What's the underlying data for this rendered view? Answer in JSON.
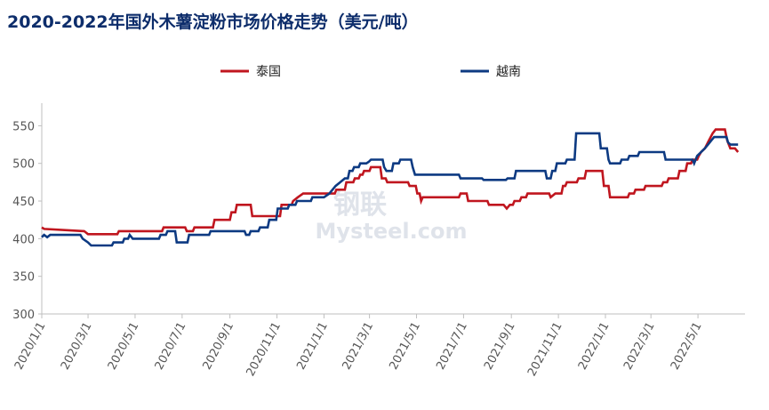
{
  "chart_data": {
    "type": "line",
    "title": "2020-2022年国外木薯淀粉市场价格走势（美元/吨）",
    "ylim": [
      300,
      580
    ],
    "yticks": [
      300,
      350,
      400,
      450,
      500,
      550
    ],
    "xlim": [
      "2020-01-01",
      "2022-07-01"
    ],
    "xticks": [
      "2020/1/1",
      "2020/3/1",
      "2020/5/1",
      "2020/7/1",
      "2020/9/1",
      "2020/11/1",
      "2021/1/1",
      "2021/3/1",
      "2021/5/1",
      "2021/7/1",
      "2021/9/1",
      "2021/11/1",
      "2022/1/1",
      "2022/3/1",
      "2022/5/1"
    ],
    "legend_position": "top",
    "grid": false,
    "watermark": [
      "钢联",
      "Mysteel.com"
    ],
    "series": [
      {
        "name": "泰国",
        "color": "#c0161f",
        "points": [
          [
            "2020-01-01",
            415
          ],
          [
            "2020-01-04",
            413
          ],
          [
            "2020-02-25",
            410
          ],
          [
            "2020-03-01",
            406
          ],
          [
            "2020-04-08",
            406
          ],
          [
            "2020-04-10",
            410
          ],
          [
            "2020-05-15",
            410
          ],
          [
            "2020-06-05",
            410
          ],
          [
            "2020-06-07",
            415
          ],
          [
            "2020-07-05",
            415
          ],
          [
            "2020-07-07",
            410
          ],
          [
            "2020-07-15",
            410
          ],
          [
            "2020-07-17",
            415
          ],
          [
            "2020-08-10",
            415
          ],
          [
            "2020-08-12",
            425
          ],
          [
            "2020-09-01",
            425
          ],
          [
            "2020-09-03",
            435
          ],
          [
            "2020-09-08",
            435
          ],
          [
            "2020-09-10",
            445
          ],
          [
            "2020-09-28",
            445
          ],
          [
            "2020-09-30",
            430
          ],
          [
            "2020-11-05",
            430
          ],
          [
            "2020-11-07",
            445
          ],
          [
            "2020-11-20",
            445
          ],
          [
            "2020-11-22",
            450
          ],
          [
            "2020-11-28",
            455
          ],
          [
            "2020-12-05",
            460
          ],
          [
            "2021-01-01",
            460
          ],
          [
            "2021-01-15",
            460
          ],
          [
            "2021-01-17",
            465
          ],
          [
            "2021-01-28",
            465
          ],
          [
            "2021-01-30",
            475
          ],
          [
            "2021-02-08",
            475
          ],
          [
            "2021-02-10",
            480
          ],
          [
            "2021-02-15",
            480
          ],
          [
            "2021-02-17",
            485
          ],
          [
            "2021-02-20",
            485
          ],
          [
            "2021-02-22",
            490
          ],
          [
            "2021-03-01",
            490
          ],
          [
            "2021-03-03",
            495
          ],
          [
            "2021-03-15",
            495
          ],
          [
            "2021-03-17",
            480
          ],
          [
            "2021-03-22",
            480
          ],
          [
            "2021-03-24",
            475
          ],
          [
            "2021-04-20",
            475
          ],
          [
            "2021-04-22",
            470
          ],
          [
            "2021-04-30",
            470
          ],
          [
            "2021-05-02",
            460
          ],
          [
            "2021-05-05",
            460
          ],
          [
            "2021-05-07",
            450
          ],
          [
            "2021-05-09",
            455
          ],
          [
            "2021-06-25",
            455
          ],
          [
            "2021-06-27",
            460
          ],
          [
            "2021-07-05",
            460
          ],
          [
            "2021-07-07",
            450
          ],
          [
            "2021-08-01",
            450
          ],
          [
            "2021-08-03",
            445
          ],
          [
            "2021-08-20",
            445
          ],
          [
            "2021-08-22",
            445
          ],
          [
            "2021-08-26",
            440
          ],
          [
            "2021-08-30",
            445
          ],
          [
            "2021-09-03",
            445
          ],
          [
            "2021-09-05",
            450
          ],
          [
            "2021-09-12",
            450
          ],
          [
            "2021-09-14",
            455
          ],
          [
            "2021-09-20",
            455
          ],
          [
            "2021-09-22",
            460
          ],
          [
            "2021-10-20",
            460
          ],
          [
            "2021-10-22",
            455
          ],
          [
            "2021-10-28",
            460
          ],
          [
            "2021-11-05",
            460
          ],
          [
            "2021-11-07",
            470
          ],
          [
            "2021-11-10",
            470
          ],
          [
            "2021-11-12",
            475
          ],
          [
            "2021-11-25",
            475
          ],
          [
            "2021-11-27",
            480
          ],
          [
            "2021-12-05",
            480
          ],
          [
            "2021-12-07",
            490
          ],
          [
            "2021-12-28",
            490
          ],
          [
            "2021-12-30",
            470
          ],
          [
            "2022-01-05",
            470
          ],
          [
            "2022-01-07",
            455
          ],
          [
            "2022-01-30",
            455
          ],
          [
            "2022-02-01",
            460
          ],
          [
            "2022-02-07",
            460
          ],
          [
            "2022-02-09",
            465
          ],
          [
            "2022-02-20",
            465
          ],
          [
            "2022-02-22",
            470
          ],
          [
            "2022-03-15",
            470
          ],
          [
            "2022-03-17",
            475
          ],
          [
            "2022-03-22",
            475
          ],
          [
            "2022-03-24",
            480
          ],
          [
            "2022-04-05",
            480
          ],
          [
            "2022-04-07",
            490
          ],
          [
            "2022-04-15",
            490
          ],
          [
            "2022-04-17",
            500
          ],
          [
            "2022-04-22",
            500
          ],
          [
            "2022-04-24",
            505
          ],
          [
            "2022-04-30",
            505
          ],
          [
            "2022-05-02",
            510
          ],
          [
            "2022-05-05",
            515
          ],
          [
            "2022-05-10",
            520
          ],
          [
            "2022-05-15",
            530
          ],
          [
            "2022-05-20",
            540
          ],
          [
            "2022-05-24",
            545
          ],
          [
            "2022-06-05",
            545
          ],
          [
            "2022-06-08",
            530
          ],
          [
            "2022-06-12",
            520
          ],
          [
            "2022-06-18",
            520
          ],
          [
            "2022-06-22",
            515
          ]
        ]
      },
      {
        "name": "越南",
        "color": "#0d3a82",
        "points": [
          [
            "2020-01-01",
            402
          ],
          [
            "2020-01-04",
            405
          ],
          [
            "2020-01-08",
            402
          ],
          [
            "2020-01-12",
            405
          ],
          [
            "2020-02-20",
            405
          ],
          [
            "2020-02-23",
            400
          ],
          [
            "2020-03-01",
            395
          ],
          [
            "2020-03-05",
            391
          ],
          [
            "2020-04-01",
            391
          ],
          [
            "2020-04-03",
            395
          ],
          [
            "2020-04-15",
            395
          ],
          [
            "2020-04-17",
            400
          ],
          [
            "2020-04-22",
            400
          ],
          [
            "2020-04-24",
            405
          ],
          [
            "2020-04-28",
            400
          ],
          [
            "2020-06-01",
            400
          ],
          [
            "2020-06-03",
            405
          ],
          [
            "2020-06-10",
            405
          ],
          [
            "2020-06-12",
            410
          ],
          [
            "2020-06-22",
            410
          ],
          [
            "2020-06-24",
            395
          ],
          [
            "2020-07-08",
            395
          ],
          [
            "2020-07-10",
            405
          ],
          [
            "2020-08-05",
            405
          ],
          [
            "2020-08-07",
            410
          ],
          [
            "2020-09-20",
            410
          ],
          [
            "2020-09-22",
            405
          ],
          [
            "2020-09-26",
            405
          ],
          [
            "2020-09-28",
            410
          ],
          [
            "2020-10-08",
            410
          ],
          [
            "2020-10-10",
            415
          ],
          [
            "2020-10-20",
            415
          ],
          [
            "2020-10-22",
            425
          ],
          [
            "2020-10-31",
            425
          ],
          [
            "2020-11-02",
            440
          ],
          [
            "2020-11-15",
            440
          ],
          [
            "2020-11-17",
            445
          ],
          [
            "2020-11-25",
            445
          ],
          [
            "2020-11-27",
            450
          ],
          [
            "2020-12-15",
            450
          ],
          [
            "2020-12-17",
            455
          ],
          [
            "2021-01-01",
            455
          ],
          [
            "2021-01-08",
            460
          ],
          [
            "2021-01-12",
            465
          ],
          [
            "2021-01-16",
            470
          ],
          [
            "2021-01-22",
            475
          ],
          [
            "2021-01-28",
            480
          ],
          [
            "2021-02-01",
            480
          ],
          [
            "2021-02-03",
            490
          ],
          [
            "2021-02-07",
            490
          ],
          [
            "2021-02-09",
            495
          ],
          [
            "2021-02-15",
            495
          ],
          [
            "2021-02-17",
            500
          ],
          [
            "2021-02-25",
            500
          ],
          [
            "2021-02-28",
            502
          ],
          [
            "2021-03-03",
            505
          ],
          [
            "2021-03-18",
            505
          ],
          [
            "2021-03-20",
            495
          ],
          [
            "2021-03-23",
            490
          ],
          [
            "2021-03-30",
            490
          ],
          [
            "2021-04-01",
            500
          ],
          [
            "2021-04-08",
            500
          ],
          [
            "2021-04-10",
            505
          ],
          [
            "2021-04-24",
            505
          ],
          [
            "2021-04-26",
            495
          ],
          [
            "2021-04-29",
            485
          ],
          [
            "2021-06-25",
            485
          ],
          [
            "2021-06-27",
            480
          ],
          [
            "2021-07-25",
            480
          ],
          [
            "2021-07-27",
            478
          ],
          [
            "2021-08-25",
            478
          ],
          [
            "2021-08-27",
            480
          ],
          [
            "2021-09-05",
            480
          ],
          [
            "2021-09-07",
            490
          ],
          [
            "2021-10-15",
            490
          ],
          [
            "2021-10-17",
            480
          ],
          [
            "2021-10-22",
            480
          ],
          [
            "2021-10-24",
            490
          ],
          [
            "2021-10-28",
            490
          ],
          [
            "2021-10-30",
            500
          ],
          [
            "2021-11-10",
            500
          ],
          [
            "2021-11-12",
            505
          ],
          [
            "2021-11-22",
            505
          ],
          [
            "2021-11-24",
            540
          ],
          [
            "2021-12-24",
            540
          ],
          [
            "2021-12-26",
            520
          ],
          [
            "2022-01-03",
            520
          ],
          [
            "2022-01-05",
            505
          ],
          [
            "2022-01-07",
            500
          ],
          [
            "2022-01-20",
            500
          ],
          [
            "2022-01-22",
            505
          ],
          [
            "2022-01-30",
            505
          ],
          [
            "2022-02-01",
            510
          ],
          [
            "2022-02-12",
            510
          ],
          [
            "2022-02-14",
            515
          ],
          [
            "2022-03-18",
            515
          ],
          [
            "2022-03-20",
            505
          ],
          [
            "2022-04-24",
            505
          ],
          [
            "2022-04-26",
            500
          ],
          [
            "2022-04-30",
            510
          ],
          [
            "2022-05-05",
            515
          ],
          [
            "2022-05-10",
            520
          ],
          [
            "2022-05-14",
            525
          ],
          [
            "2022-05-18",
            530
          ],
          [
            "2022-05-22",
            535
          ],
          [
            "2022-06-07",
            535
          ],
          [
            "2022-06-09",
            528
          ],
          [
            "2022-06-12",
            525
          ],
          [
            "2022-06-22",
            525
          ]
        ]
      }
    ]
  }
}
